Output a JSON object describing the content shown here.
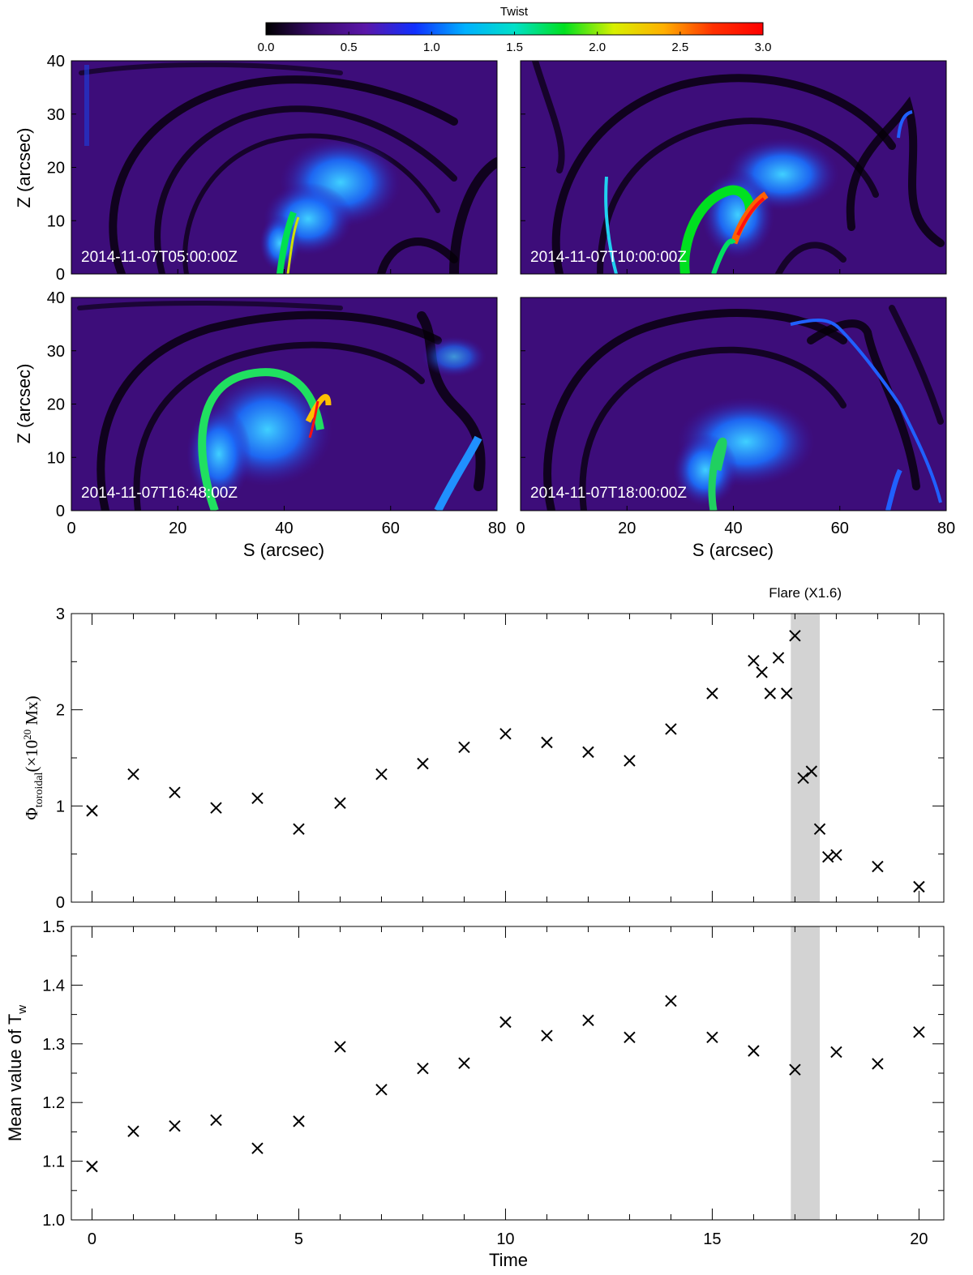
{
  "colorbar": {
    "title": "Twist",
    "range": [
      0,
      3
    ],
    "ticks": [
      "0.0",
      "0.5",
      "1.0",
      "1.5",
      "2.0",
      "2.5",
      "3.0"
    ],
    "colormap": [
      "#000000",
      "#3a0a6e",
      "#5a16a8",
      "#1030ff",
      "#00b0ff",
      "#00e0c8",
      "#00e020",
      "#d8f000",
      "#ffb000",
      "#ff3000",
      "#ff0000"
    ]
  },
  "panels": {
    "ylabel": "Z (arcsec)",
    "xlabel": "S (arcsec)",
    "xlim": [
      0,
      80
    ],
    "ylim": [
      0,
      40
    ],
    "xticks": [
      "0",
      "20",
      "40",
      "60",
      "80"
    ],
    "yticks": [
      "0",
      "10",
      "20",
      "30",
      "40"
    ],
    "timestamps": [
      "2014-11-07T05:00:00Z",
      "2014-11-07T10:00:00Z",
      "2014-11-07T16:48:00Z",
      "2014-11-07T18:00:00Z"
    ]
  },
  "chart_data": [
    {
      "type": "scatter",
      "title": "",
      "xlabel": "",
      "ylabel_main": "Φ",
      "ylabel_sub": "toroidal",
      "ylabel_rest": "(×10",
      "ylabel_exp": "20",
      "ylabel_unit": " Mx)",
      "xlim": [
        -0.5,
        20.6
      ],
      "ylim": [
        0,
        3
      ],
      "yticks": [
        "0",
        "1",
        "2",
        "3"
      ],
      "flare": {
        "label": "Flare (X1.6)",
        "range": [
          16.9,
          17.6
        ]
      },
      "marker": "×",
      "x": [
        0,
        1,
        2,
        3,
        4,
        5,
        6,
        7,
        8,
        9,
        10,
        11,
        12,
        13,
        14,
        15,
        16,
        16.2,
        16.4,
        16.6,
        16.8,
        17,
        17.2,
        17.4,
        17.6,
        17.8,
        18,
        19,
        20
      ],
      "y": [
        0.95,
        1.33,
        1.14,
        0.98,
        1.08,
        0.76,
        1.03,
        1.33,
        1.44,
        1.61,
        1.75,
        1.66,
        1.56,
        1.47,
        1.8,
        2.17,
        2.51,
        2.39,
        2.17,
        2.54,
        2.17,
        2.77,
        1.29,
        1.36,
        0.76,
        0.47,
        0.49,
        0.37,
        0.16
      ]
    },
    {
      "type": "scatter",
      "title": "",
      "xlabel": "Time",
      "ylabel_main": "Mean value of T",
      "ylabel_sub": "w",
      "xlim": [
        -0.5,
        20.6
      ],
      "ylim": [
        1.0,
        1.5
      ],
      "yticks": [
        "1.0",
        "1.1",
        "1.2",
        "1.3",
        "1.4",
        "1.5"
      ],
      "xticks": [
        "0",
        "5",
        "10",
        "15",
        "20"
      ],
      "flare": {
        "range": [
          16.9,
          17.6
        ]
      },
      "marker": "×",
      "x": [
        0,
        1,
        2,
        3,
        4,
        5,
        6,
        7,
        8,
        9,
        10,
        11,
        12,
        13,
        14,
        15,
        16,
        17,
        18,
        19,
        20
      ],
      "y": [
        1.091,
        1.151,
        1.16,
        1.17,
        1.122,
        1.168,
        1.295,
        1.222,
        1.258,
        1.267,
        1.337,
        1.314,
        1.34,
        1.311,
        1.373,
        1.311,
        1.288,
        1.256,
        1.286,
        1.266,
        1.32
      ]
    }
  ]
}
